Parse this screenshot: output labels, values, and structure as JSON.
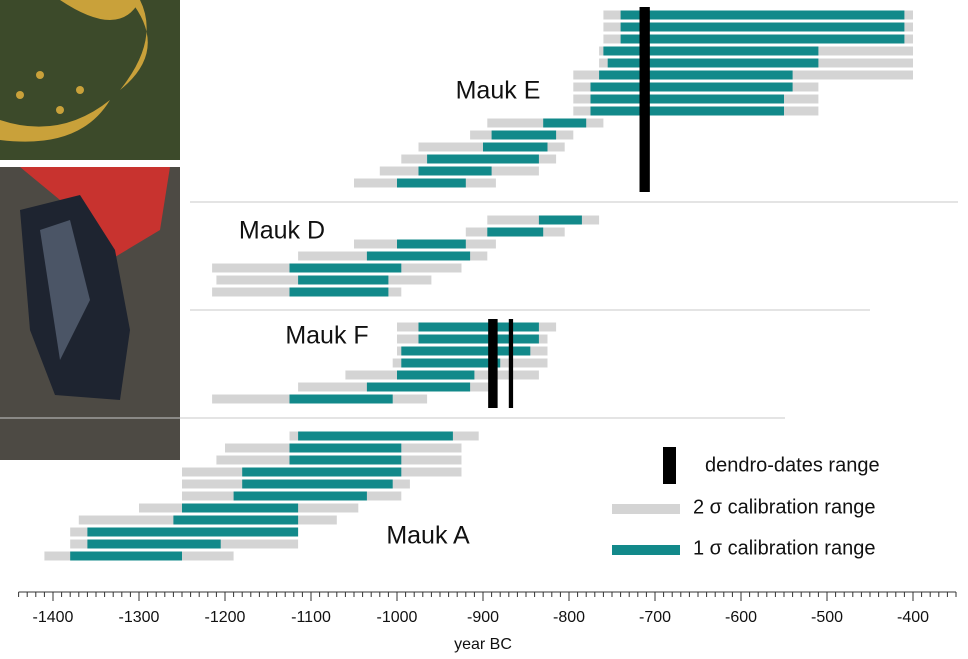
{
  "chart_data": {
    "type": "range",
    "x_label": "year BC",
    "xlim": [
      -1440,
      -350
    ],
    "xticks": [
      -1400,
      -1300,
      -1200,
      -1100,
      -1000,
      -900,
      -800,
      -700,
      -600,
      -500,
      -400
    ],
    "series": [
      {
        "name": "dendro-dates range",
        "color": "#000000"
      },
      {
        "name": "2 σ calibration range",
        "color": "#d4d4d4"
      },
      {
        "name": "1 σ calibration range",
        "color": "#12898a"
      }
    ],
    "groups": [
      {
        "label": "Mauk E",
        "sigma2": [
          [
            -760,
            -400
          ],
          [
            -760,
            -400
          ],
          [
            -760,
            -400
          ],
          [
            -765,
            -400
          ],
          [
            -765,
            -400
          ],
          [
            -795,
            -400
          ],
          [
            -795,
            -510
          ],
          [
            -795,
            -510
          ],
          [
            -795,
            -510
          ],
          [
            -895,
            -760
          ],
          [
            -915,
            -795
          ],
          [
            -975,
            -805
          ],
          [
            -995,
            -815
          ],
          [
            -1020,
            -835
          ],
          [
            -1050,
            -885
          ]
        ],
        "sigma1": [
          [
            -740,
            -410
          ],
          [
            -740,
            -410
          ],
          [
            -740,
            -410
          ],
          [
            -760,
            -510
          ],
          [
            -755,
            -510
          ],
          [
            -765,
            -540
          ],
          [
            -775,
            -540
          ],
          [
            -775,
            -550
          ],
          [
            -775,
            -550
          ],
          [
            -830,
            -780
          ],
          [
            -890,
            -815
          ],
          [
            -900,
            -825
          ],
          [
            -965,
            -835
          ],
          [
            -975,
            -890
          ],
          [
            -1000,
            -920
          ]
        ],
        "dendro": [
          [
            -718,
            -706
          ]
        ]
      },
      {
        "label": "Mauk D",
        "sigma2": [
          [
            -895,
            -765
          ],
          [
            -920,
            -805
          ],
          [
            -1050,
            -885
          ],
          [
            -1115,
            -895
          ],
          [
            -1215,
            -925
          ],
          [
            -1210,
            -960
          ],
          [
            -1215,
            -995
          ]
        ],
        "sigma1": [
          [
            -835,
            -785
          ],
          [
            -895,
            -830
          ],
          [
            -1000,
            -920
          ],
          [
            -1035,
            -915
          ],
          [
            -1125,
            -995
          ],
          [
            -1115,
            -1010
          ],
          [
            -1125,
            -1010
          ]
        ],
        "dendro": []
      },
      {
        "label": "Mauk F",
        "sigma2": [
          [
            -1000,
            -815
          ],
          [
            -1000,
            -825
          ],
          [
            -1000,
            -825
          ],
          [
            -1005,
            -825
          ],
          [
            -1060,
            -835
          ],
          [
            -1115,
            -885
          ],
          [
            -1215,
            -965
          ]
        ],
        "sigma1": [
          [
            -975,
            -835
          ],
          [
            -975,
            -835
          ],
          [
            -995,
            -845
          ],
          [
            -995,
            -880
          ],
          [
            -1000,
            -910
          ],
          [
            -1035,
            -915
          ],
          [
            -1125,
            -1005
          ]
        ],
        "dendro": [
          [
            -894,
            -883
          ],
          [
            -870,
            -865
          ]
        ]
      },
      {
        "label": "Mauk A",
        "sigma2": [
          [
            -1125,
            -905
          ],
          [
            -1200,
            -925
          ],
          [
            -1210,
            -925
          ],
          [
            -1250,
            -925
          ],
          [
            -1250,
            -985
          ],
          [
            -1250,
            -995
          ],
          [
            -1300,
            -1045
          ],
          [
            -1370,
            -1070
          ],
          [
            -1380,
            -1115
          ],
          [
            -1380,
            -1115
          ],
          [
            -1410,
            -1190
          ]
        ],
        "sigma1": [
          [
            -1115,
            -935
          ],
          [
            -1125,
            -995
          ],
          [
            -1125,
            -995
          ],
          [
            -1180,
            -995
          ],
          [
            -1180,
            -1005
          ],
          [
            -1190,
            -1035
          ],
          [
            -1250,
            -1115
          ],
          [
            -1260,
            -1115
          ],
          [
            -1360,
            -1115
          ],
          [
            -1360,
            -1205
          ],
          [
            -1380,
            -1250
          ]
        ],
        "dendro": []
      }
    ]
  }
}
